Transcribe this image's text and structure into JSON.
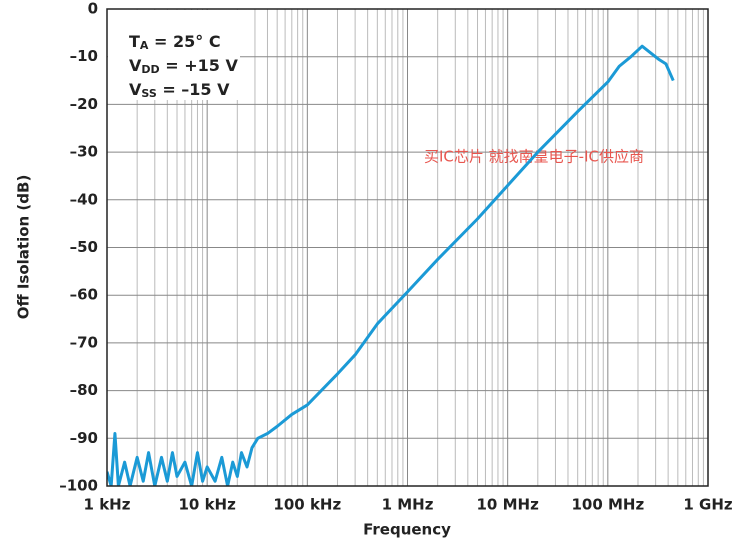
{
  "chart_data": {
    "type": "line",
    "xlabel": "Frequency",
    "ylabel": "Off Isolation (dB)",
    "xscale": "log",
    "grid": true,
    "color": "#1b9ad6",
    "annotations": [
      {
        "main": "T",
        "sub": "A",
        "rest": " = 25° C"
      },
      {
        "main": "V",
        "sub": "DD",
        "rest": " = +15 V"
      },
      {
        "main": "V",
        "sub": "SS",
        "rest": " = –15 V"
      }
    ],
    "watermark": "买IC芯片 就找南皇电子-IC供应商",
    "xlim": [
      1000,
      1000000000
    ],
    "xticks": [
      {
        "value": 1000,
        "label": "1 kHz"
      },
      {
        "value": 10000,
        "label": "10 kHz"
      },
      {
        "value": 100000,
        "label": "100 kHz"
      },
      {
        "value": 1000000,
        "label": "1 MHz"
      },
      {
        "value": 10000000,
        "label": "10 MHz"
      },
      {
        "value": 100000000,
        "label": "100 MHz"
      },
      {
        "value": 1000000000,
        "label": "1 GHz"
      }
    ],
    "xminorticks": [
      2000,
      3000,
      4000,
      5000,
      6000,
      7000,
      8000,
      9000,
      20000,
      30000,
      40000,
      50000,
      60000,
      70000,
      80000,
      90000,
      200000,
      300000,
      400000,
      500000,
      600000,
      700000,
      800000,
      900000,
      2000000,
      3000000,
      4000000,
      5000000,
      6000000,
      7000000,
      8000000,
      9000000,
      20000000,
      30000000,
      40000000,
      50000000,
      60000000,
      70000000,
      80000000,
      90000000,
      200000000,
      300000000,
      400000000,
      500000000,
      600000000,
      700000000,
      800000000,
      900000000
    ],
    "ylim": [
      -100,
      0
    ],
    "yticks": [
      0,
      {
        "value": -10,
        "label": "–10"
      },
      {
        "value": -20,
        "label": "–20"
      },
      {
        "value": -30,
        "label": "–30"
      },
      {
        "value": -40,
        "label": "–40"
      },
      {
        "value": -50,
        "label": "–50"
      },
      {
        "value": -60,
        "label": "–60"
      },
      {
        "value": -70,
        "label": "–70"
      },
      {
        "value": -80,
        "label": "–80"
      },
      {
        "value": -90,
        "label": "–90"
      },
      {
        "value": -100,
        "label": "–100"
      }
    ],
    "x": [
      1000,
      1100,
      1200,
      1300,
      1500,
      1700,
      2000,
      2300,
      2600,
      3000,
      3500,
      4000,
      4500,
      5000,
      6000,
      7000,
      8000,
      9000,
      10000,
      12000,
      14000,
      16000,
      18000,
      20000,
      22000,
      25000,
      28000,
      32000,
      40000,
      50000,
      70000,
      100000,
      200000,
      300000,
      500000,
      1000000,
      2000000,
      5000000,
      10000000,
      20000000,
      50000000,
      100000000,
      130000000,
      170000000,
      220000000,
      260000000,
      320000000,
      380000000,
      450000000
    ],
    "values": [
      -97,
      -100,
      -89,
      -100,
      -95,
      -100,
      -94,
      -99,
      -93,
      -100,
      -94,
      -99,
      -93,
      -98,
      -95,
      -100,
      -93,
      -99,
      -96,
      -99,
      -94,
      -100,
      -95,
      -98,
      -93,
      -96,
      -92,
      -90,
      -89,
      -87.5,
      -85,
      -83,
      -76.5,
      -72.5,
      -66,
      -59.3,
      -52.5,
      -44,
      -37,
      -30,
      -21.5,
      -15.3,
      -12,
      -10,
      -7.8,
      -9,
      -10.5,
      -11.5,
      -15
    ]
  }
}
